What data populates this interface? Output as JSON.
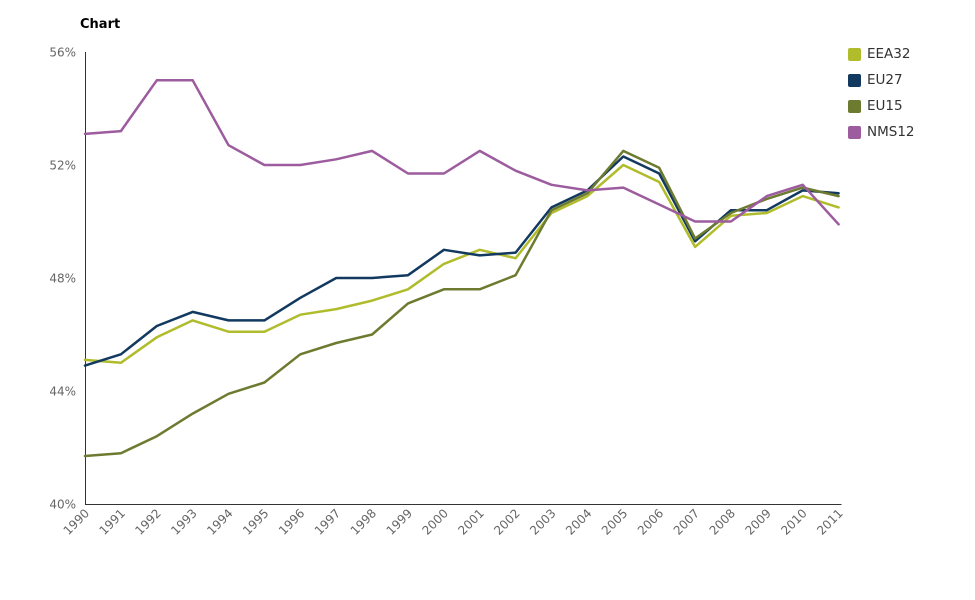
{
  "page": {
    "title": "Chart"
  },
  "chart_data": {
    "type": "line",
    "title": "Chart",
    "xlabel": "",
    "ylabel": "",
    "ylim": [
      40,
      56
    ],
    "grid": false,
    "legend_position": "top-right",
    "axis_color": "#333333",
    "label_color": "#666666",
    "yticks": [
      {
        "v": 40,
        "label": "40%"
      },
      {
        "v": 44,
        "label": "44%"
      },
      {
        "v": 48,
        "label": "48%"
      },
      {
        "v": 52,
        "label": "52%"
      },
      {
        "v": 56,
        "label": "56%"
      }
    ],
    "categories": [
      "1990",
      "1991",
      "1992",
      "1993",
      "1994",
      "1995",
      "1996",
      "1997",
      "1998",
      "1999",
      "2000",
      "2001",
      "2002",
      "2003",
      "2004",
      "2005",
      "2006",
      "2007",
      "2008",
      "2009",
      "2010",
      "2011"
    ],
    "series": [
      {
        "name": "EEA32",
        "color": "#b0bc2c",
        "values": [
          45.1,
          45.0,
          45.9,
          46.5,
          46.1,
          46.1,
          46.7,
          46.9,
          47.2,
          47.6,
          48.5,
          49.0,
          48.7,
          50.3,
          50.9,
          52.0,
          51.4,
          49.1,
          50.2,
          50.3,
          50.9,
          50.5
        ]
      },
      {
        "name": "EU27",
        "color": "#12395f",
        "values": [
          44.9,
          45.3,
          46.3,
          46.8,
          46.5,
          46.5,
          47.3,
          48.0,
          48.0,
          48.1,
          49.0,
          48.8,
          48.9,
          50.5,
          51.1,
          52.3,
          51.7,
          49.3,
          50.4,
          50.4,
          51.1,
          51.0
        ]
      },
      {
        "name": "EU15",
        "color": "#6d7b30",
        "values": [
          41.7,
          41.8,
          42.4,
          43.2,
          43.9,
          44.3,
          45.3,
          45.7,
          46.0,
          47.1,
          47.6,
          47.6,
          48.1,
          50.4,
          51.0,
          52.5,
          51.9,
          49.4,
          50.3,
          50.8,
          51.2,
          50.9
        ]
      },
      {
        "name": "NMS12",
        "color": "#9c5c9e",
        "values": [
          53.1,
          53.2,
          55.0,
          55.0,
          52.7,
          52.0,
          52.0,
          52.2,
          52.5,
          51.7,
          51.7,
          52.5,
          51.8,
          51.3,
          51.1,
          51.2,
          50.6,
          50.0,
          50.0,
          50.9,
          51.3,
          49.9
        ]
      }
    ]
  }
}
